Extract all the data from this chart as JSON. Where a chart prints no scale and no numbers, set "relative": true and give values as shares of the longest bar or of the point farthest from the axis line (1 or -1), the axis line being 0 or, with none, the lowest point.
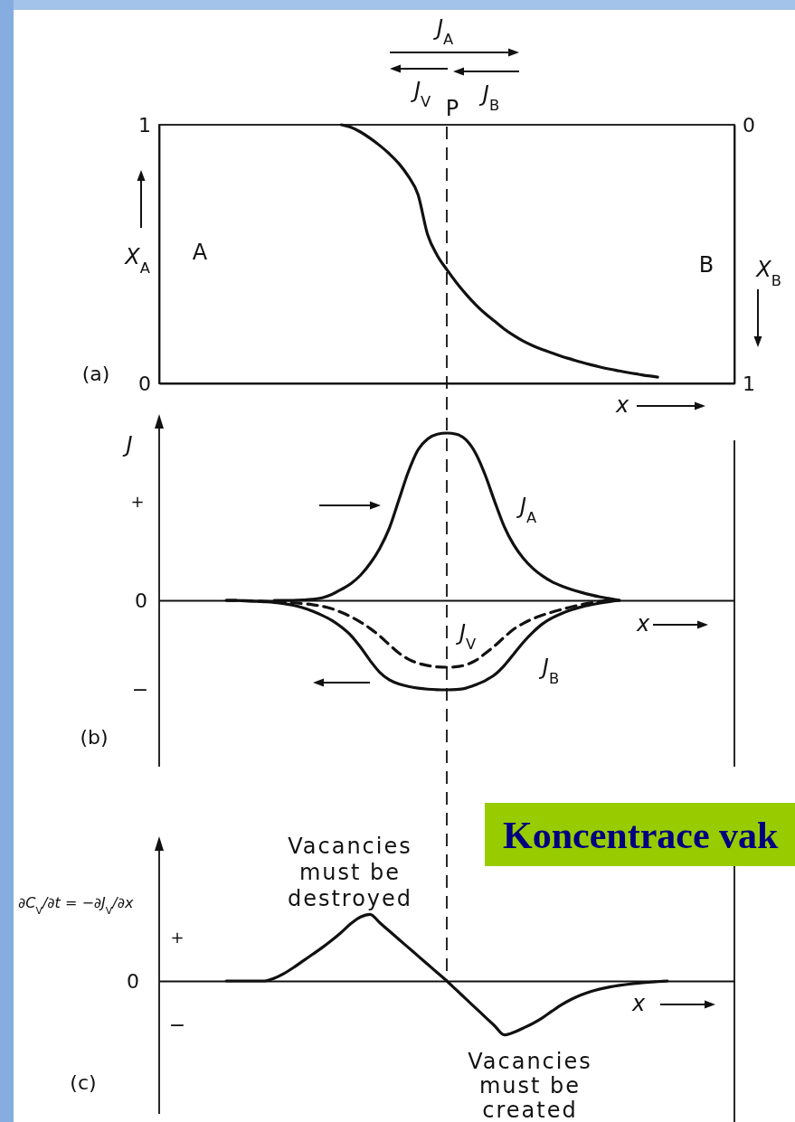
{
  "chart_data": [
    {
      "type": "line",
      "categories": [
        null,
        null,
        null,
        null,
        null,
        null,
        null,
        null,
        null,
        null,
        null,
        null,
        null,
        null,
        null,
        null,
        null,
        null,
        null,
        null,
        null,
        null,
        null,
        null,
        null,
        null,
        null,
        null,
        null,
        null,
        null,
        null,
        null,
        null,
        null,
        null,
        null,
        null,
        null,
        null,
        null,
        null,
        null,
        null,
        null,
        null,
        null,
        null,
        null,
        null,
        null,
        null,
        null,
        null,
        null,
        null,
        null,
        null,
        null,
        null,
        null
      ],
      "series": [
        {
          "color": "#111111",
          "values": [
            null,
            null,
            null,
            null,
            null,
            null,
            null,
            null,
            null,
            null,
            null,
            null,
            null,
            null,
            null,
            null,
            null,
            null,
            null,
            1,
            0.99,
            0.972,
            0.948,
            0.92,
            0.888,
            0.85,
            0.8,
            0.73,
            0.575,
            0.495,
            0.44,
            0.39,
            0.345,
            0.305,
            0.27,
            0.24,
            0.21,
            0.185,
            0.163,
            0.145,
            0.13,
            0.117,
            0.104,
            0.093,
            0.082,
            0.072,
            0.063,
            0.055,
            0.048,
            0.041,
            0.035,
            0.029,
            0.024,
            null,
            null,
            null,
            null,
            null,
            null,
            null,
            null
          ]
        }
      ],
      "ylim": [
        0,
        1
      ],
      "yticks": [
        0,
        1
      ],
      "y2lim": [
        1,
        0
      ],
      "y2ticks": [
        0,
        1
      ],
      "ylabel": "X$_{A}$",
      "y2label": "X$_{B}$",
      "xlabel": "x",
      "annotations": [
        "(a)",
        "A",
        "B",
        "J$_{A}$",
        "J$_{V}$",
        "J$_{B}$",
        "P"
      ]
    },
    {
      "type": "line",
      "relative": true,
      "categories": [
        null,
        null,
        null,
        null,
        null,
        null,
        null,
        null,
        null,
        null,
        null,
        null,
        null,
        null,
        null,
        null,
        null,
        null,
        null,
        null,
        null,
        null,
        null,
        null,
        null,
        null,
        null,
        null,
        null,
        null,
        null,
        null,
        null,
        null,
        null,
        null,
        null,
        null,
        null,
        null,
        null,
        null,
        null,
        null,
        null,
        null,
        null,
        null,
        null,
        null,
        null,
        null,
        null,
        null,
        null,
        null,
        null,
        null,
        null,
        null,
        null
      ],
      "series": [
        {
          "name": "J$_{A}$",
          "color": "#111111",
          "values": [
            null,
            null,
            null,
            null,
            null,
            null,
            null,
            null,
            null,
            null,
            null,
            null,
            0,
            0,
            0,
            0.002,
            0.006,
            0.015,
            0.035,
            0.065,
            0.1,
            0.15,
            0.22,
            0.31,
            0.43,
            0.6,
            0.77,
            0.9,
            0.965,
            0.993,
            1,
            0.993,
            0.96,
            0.88,
            0.75,
            0.59,
            0.44,
            0.33,
            0.25,
            0.19,
            0.145,
            0.11,
            0.085,
            0.065,
            0.048,
            0.033,
            0.02,
            0.01,
            0,
            null,
            null,
            null,
            null,
            null,
            null,
            null,
            null,
            null,
            null,
            null,
            null
          ]
        },
        {
          "name": "J$_{V}$",
          "color": "#111111",
          "line_style": "dashed",
          "values": [
            null,
            null,
            null,
            null,
            null,
            null,
            null,
            0,
            -0.001,
            -0.002,
            -0.004,
            -0.006,
            -0.008,
            -0.011,
            -0.015,
            -0.02,
            -0.026,
            -0.035,
            -0.05,
            -0.072,
            -0.098,
            -0.13,
            -0.168,
            -0.213,
            -0.265,
            -0.315,
            -0.352,
            -0.376,
            -0.39,
            -0.398,
            -0.4,
            -0.397,
            -0.385,
            -0.36,
            -0.318,
            -0.272,
            -0.22,
            -0.172,
            -0.137,
            -0.11,
            -0.088,
            -0.07,
            -0.054,
            -0.039,
            -0.026,
            -0.015,
            -0.006,
            0,
            null,
            null,
            null,
            null,
            null,
            null,
            null,
            null,
            null,
            null,
            null,
            null,
            null
          ]
        },
        {
          "name": "J$_{B}$",
          "color": "#111111",
          "values": [
            null,
            null,
            null,
            null,
            null,
            null,
            null,
            0,
            0,
            -0.003,
            -0.006,
            -0.009,
            -0.013,
            -0.02,
            -0.03,
            -0.045,
            -0.065,
            -0.09,
            -0.12,
            -0.16,
            -0.21,
            -0.28,
            -0.36,
            -0.43,
            -0.475,
            -0.5,
            -0.515,
            -0.525,
            -0.531,
            -0.534,
            -0.535,
            -0.533,
            -0.525,
            -0.505,
            -0.48,
            -0.445,
            -0.39,
            -0.32,
            -0.25,
            -0.19,
            -0.14,
            -0.105,
            -0.078,
            -0.057,
            -0.04,
            -0.027,
            -0.016,
            -0.007,
            0,
            null,
            null,
            null,
            null,
            null,
            null,
            null,
            null,
            null,
            null,
            null,
            null
          ]
        }
      ],
      "ylabel": "J",
      "xlabel": "x",
      "annotations": [
        "(b)",
        "+",
        "0",
        "−"
      ]
    },
    {
      "type": "line",
      "relative": true,
      "categories": [
        null,
        null,
        null,
        null,
        null,
        null,
        null,
        null,
        null,
        null,
        null,
        null,
        null,
        null,
        null,
        null,
        null,
        null,
        null,
        null,
        null,
        null,
        null,
        null,
        null,
        null,
        null,
        null,
        null,
        null,
        null,
        null,
        null,
        null,
        null,
        null,
        null,
        null,
        null,
        null,
        null,
        null,
        null,
        null,
        null,
        null,
        null,
        null,
        null,
        null,
        null,
        null,
        null,
        null,
        null,
        null,
        null,
        null,
        null,
        null,
        null
      ],
      "series": [
        {
          "color": "#111111",
          "values": [
            null,
            null,
            null,
            null,
            null,
            null,
            null,
            0,
            0,
            0,
            0,
            0,
            0.04,
            0.11,
            0.2,
            0.3,
            0.4,
            0.5,
            0.61,
            0.73,
            0.86,
            0.96,
            1,
            0.875,
            0.75,
            0.625,
            0.5,
            0.375,
            0.25,
            0.125,
            0,
            -0.135,
            -0.27,
            -0.405,
            -0.54,
            -0.675,
            -0.81,
            -0.77,
            -0.705,
            -0.635,
            -0.55,
            -0.45,
            -0.355,
            -0.275,
            -0.21,
            -0.16,
            -0.12,
            -0.09,
            -0.066,
            -0.047,
            -0.032,
            -0.02,
            -0.01,
            0,
            null,
            null,
            null,
            null,
            null,
            null,
            null
          ]
        }
      ],
      "ylabel": "∂C$_{V}$/∂t = −∂J$_{V}$/∂x",
      "xlabel": "x",
      "annotations": [
        "(c)",
        "+",
        "0",
        "−",
        "Vacancies must be destroyed",
        "Vacancies must be created",
        "Koncentrace vak"
      ]
    }
  ]
}
